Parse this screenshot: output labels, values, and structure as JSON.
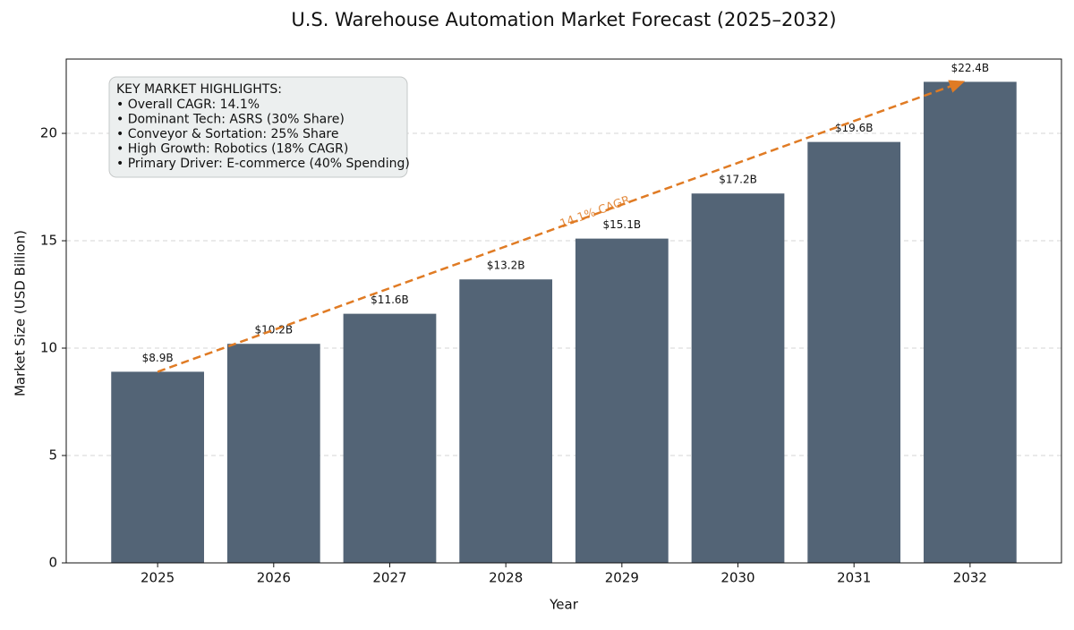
{
  "chart_data": {
    "type": "bar",
    "title": "U.S. Warehouse Automation Market Forecast (2025–2032)",
    "x_label": "Year",
    "y_label": "Market Size (USD Billion)",
    "categories": [
      "2025",
      "2026",
      "2027",
      "2028",
      "2029",
      "2030",
      "2031",
      "2032"
    ],
    "values": [
      8.9,
      10.2,
      11.6,
      13.2,
      15.1,
      17.2,
      19.6,
      22.4
    ],
    "value_labels": [
      "$8.9B",
      "$10.2B",
      "$11.6B",
      "$13.2B",
      "$15.1B",
      "$17.2B",
      "$19.6B",
      "$22.4B"
    ],
    "color": "#536476",
    "ylim": [
      0,
      23.46
    ],
    "yticks": [
      0,
      5,
      10,
      15,
      20
    ],
    "grid": true,
    "trend_label": "14.1% CAGR",
    "trend_color": "#e07b24",
    "highlights_title": "KEY MARKET HIGHLIGHTS:",
    "highlights": [
      "• Overall CAGR: 14.1%",
      "• Dominant Tech: ASRS (30% Share)",
      "• Conveyor & Sortation: 25% Share",
      "• High Growth: Robotics (18% CAGR)",
      "• Primary Driver: E-commerce (40% Spending)"
    ]
  }
}
